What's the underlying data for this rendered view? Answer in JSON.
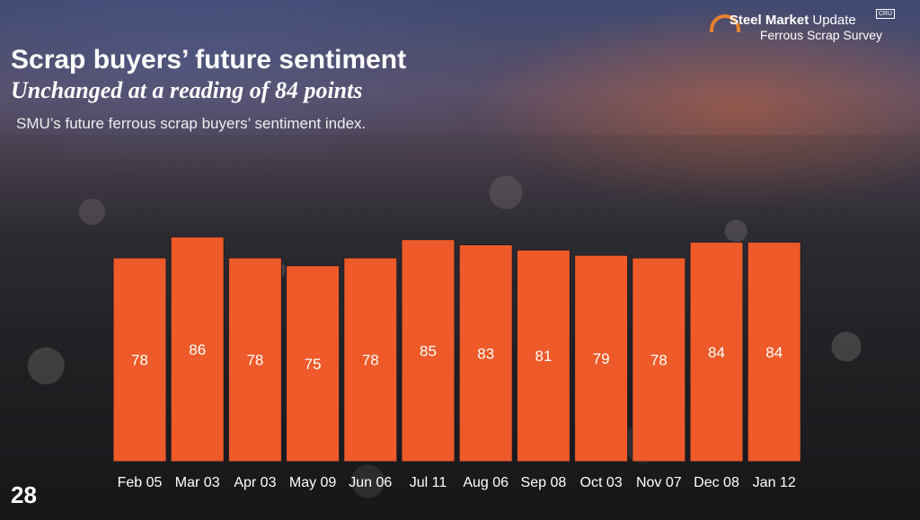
{
  "logo": {
    "brand_bold": "Steel Market",
    "brand_rest": " Update",
    "badge": "CRU",
    "line2": "Ferrous Scrap Survey"
  },
  "header": {
    "title": "Scrap buyers’ future sentiment",
    "subtitle": "Unchanged at a reading of 84 points",
    "description": "SMU’s future ferrous scrap buyers’ sentiment index."
  },
  "page_number": "28",
  "colors": {
    "bar": "#ee5a29",
    "bar_stroke": "#1e1e22"
  },
  "chart_data": {
    "type": "bar",
    "title": "Scrap buyers’ future sentiment",
    "categories": [
      "Feb 05",
      "Mar 03",
      "Apr 03",
      "May 09",
      "Jun 06",
      "Jul 11",
      "Aug 06",
      "Sep 08",
      "Oct 03",
      "Nov 07",
      "Dec 08",
      "Jan 12"
    ],
    "values": [
      78,
      86,
      78,
      75,
      78,
      85,
      83,
      81,
      79,
      78,
      84,
      84
    ],
    "xlabel": "",
    "ylabel": "",
    "ylim": [
      0,
      88
    ],
    "grid": false,
    "legend": "none"
  }
}
